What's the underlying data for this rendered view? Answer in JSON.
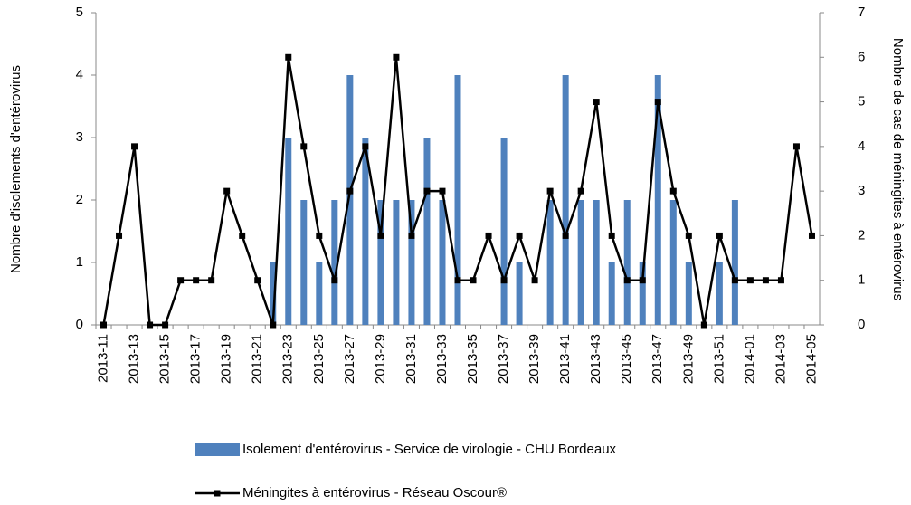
{
  "chart_data": {
    "type": "bar_line",
    "y_label": "Nombre d'isolements d'entérovirus",
    "y2_label": "Nombre de cas de méningites à entérovirus",
    "categories": [
      "2013-11",
      null,
      "2013-13",
      null,
      "2013-15",
      null,
      "2013-17",
      null,
      "2013-19",
      null,
      "2013-21",
      null,
      "2013-23",
      null,
      "2013-25",
      null,
      "2013-27",
      null,
      "2013-29",
      null,
      "2013-31",
      null,
      "2013-33",
      null,
      "2013-35",
      null,
      "2013-37",
      null,
      "2013-39",
      null,
      "2013-41",
      null,
      "2013-43",
      null,
      "2013-45",
      null,
      "2013-47",
      null,
      "2013-49",
      null,
      "2013-51",
      null,
      "2014-01",
      null,
      "2014-03",
      null,
      "2014-05"
    ],
    "series": [
      {
        "name": "Isolement d'entérovirus - Service de virologie - CHU Bordeaux",
        "type": "bar",
        "axis": "y",
        "color": "#4f81bd",
        "values": [
          0,
          0,
          0,
          0,
          0,
          0,
          0,
          0,
          0,
          0,
          0,
          1,
          3,
          2,
          1,
          2,
          4,
          3,
          2,
          2,
          2,
          3,
          2,
          4,
          0,
          0,
          3,
          1,
          0,
          2,
          4,
          2,
          2,
          1,
          2,
          1,
          4,
          2,
          1,
          0,
          1,
          2,
          0,
          0,
          0,
          0,
          0
        ]
      },
      {
        "name": "Méningites à entérovirus - Réseau Oscour®",
        "type": "line",
        "axis": "y2",
        "color": "#000000",
        "values": [
          0,
          2,
          4,
          0,
          0,
          1,
          1,
          1,
          3,
          2,
          1,
          0,
          6,
          4,
          2,
          1,
          3,
          4,
          2,
          6,
          2,
          3,
          3,
          1,
          1,
          2,
          1,
          2,
          1,
          3,
          2,
          3,
          5,
          2,
          1,
          1,
          5,
          3,
          2,
          0,
          2,
          1,
          1,
          1,
          1,
          4,
          2
        ]
      }
    ],
    "ylim": [
      0,
      5
    ],
    "yticks": [
      0,
      1,
      2,
      3,
      4,
      5
    ],
    "y2lim": [
      0,
      7
    ],
    "y2ticks": [
      0,
      1,
      2,
      3,
      4,
      5,
      6,
      7
    ]
  }
}
